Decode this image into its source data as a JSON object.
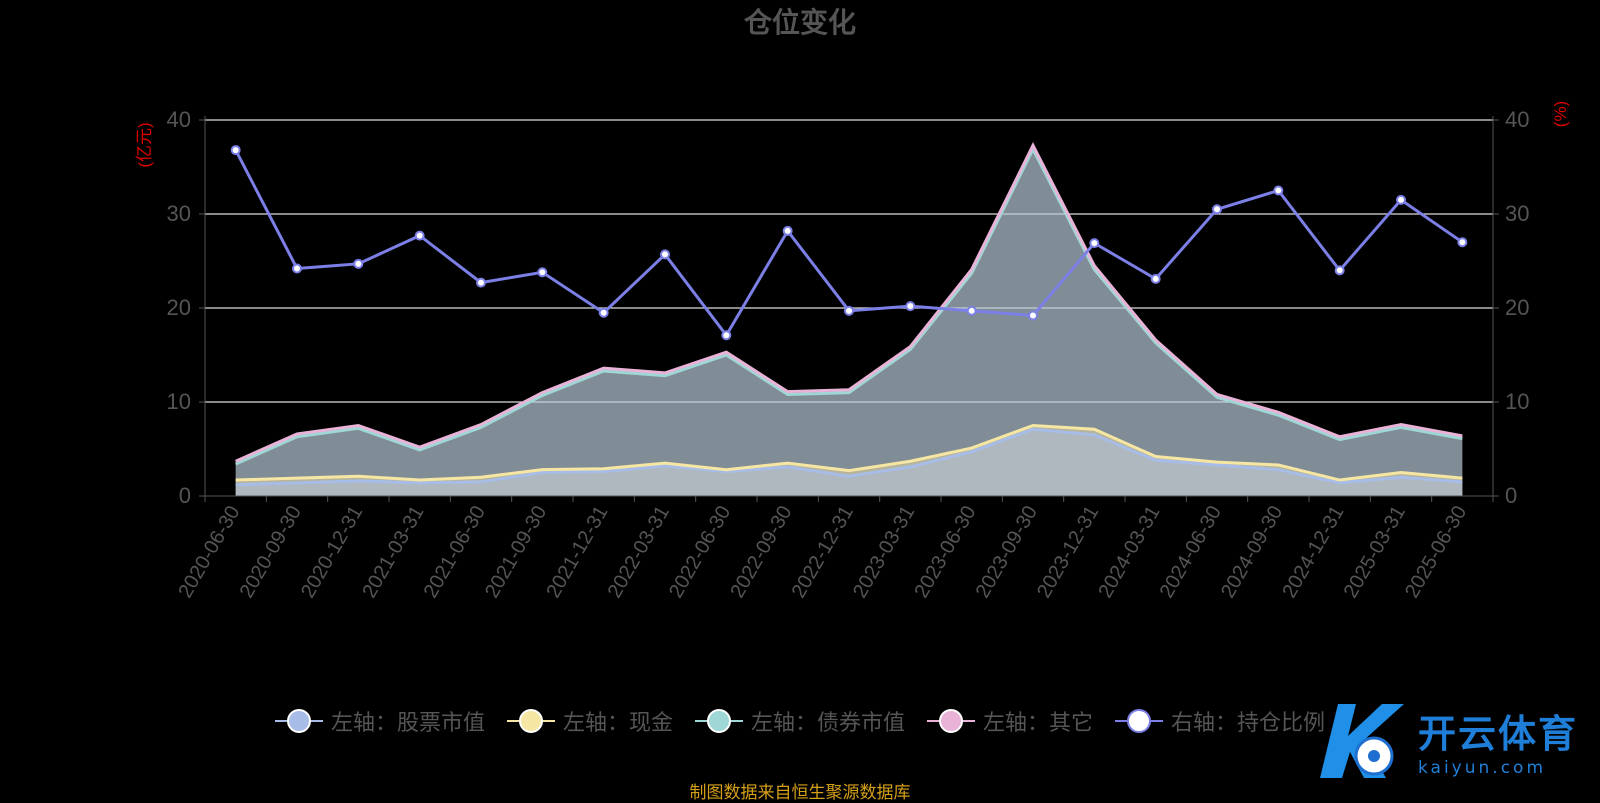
{
  "chart_data": {
    "type": "area",
    "title": "仓位变化",
    "categories": [
      "2020-06-30",
      "2020-09-30",
      "2020-12-31",
      "2021-03-31",
      "2021-06-30",
      "2021-09-30",
      "2021-12-31",
      "2022-03-31",
      "2022-06-30",
      "2022-09-30",
      "2022-12-31",
      "2023-03-31",
      "2023-06-30",
      "2023-09-30",
      "2023-12-31",
      "2024-03-31",
      "2024-06-30",
      "2024-09-30",
      "2024-12-31",
      "2025-03-31",
      "2025-06-30"
    ],
    "left_axis": {
      "unit": "(亿元)",
      "ylim": [
        0,
        40
      ],
      "ticks": [
        "0",
        "10",
        "20",
        "30",
        "40"
      ]
    },
    "right_axis": {
      "unit": "(%)",
      "ylim": [
        0,
        40
      ],
      "ticks": [
        "0",
        "10",
        "20",
        "30",
        "40"
      ]
    },
    "series": [
      {
        "name": "左轴：股票市值",
        "axis": "left",
        "stack": true,
        "color": "#a7bde8",
        "values": [
          1.2,
          1.4,
          1.6,
          1.4,
          1.5,
          2.5,
          2.6,
          3.2,
          2.6,
          3.1,
          2.1,
          3.1,
          4.7,
          7.1,
          6.5,
          3.8,
          3.3,
          2.8,
          1.4,
          2.0,
          1.5
        ]
      },
      {
        "name": "左轴：现金",
        "axis": "left",
        "stack": true,
        "color": "#f6e6a3",
        "values": [
          0.5,
          0.5,
          0.5,
          0.3,
          0.5,
          0.3,
          0.3,
          0.3,
          0.2,
          0.4,
          0.6,
          0.6,
          0.4,
          0.4,
          0.6,
          0.4,
          0.3,
          0.5,
          0.3,
          0.5,
          0.4
        ]
      },
      {
        "name": "左轴：债券市值",
        "axis": "left",
        "stack": true,
        "color": "#9fd7d6",
        "values": [
          1.7,
          4.4,
          5.1,
          3.2,
          5.3,
          7.9,
          10.4,
          9.3,
          12.2,
          7.3,
          8.3,
          11.9,
          18.6,
          29.4,
          17.0,
          12.1,
          6.9,
          5.3,
          4.3,
          4.8,
          4.2
        ]
      },
      {
        "name": "左轴：其它",
        "axis": "left",
        "stack": true,
        "color": "#e9b3d8",
        "values": [
          0.3,
          0.3,
          0.3,
          0.3,
          0.3,
          0.3,
          0.3,
          0.3,
          0.3,
          0.3,
          0.3,
          0.3,
          0.4,
          0.4,
          0.4,
          0.3,
          0.3,
          0.3,
          0.3,
          0.3,
          0.3
        ]
      },
      {
        "name": "右轴：持仓比例",
        "axis": "right",
        "stack": false,
        "color": "#7b7fe6",
        "values": [
          36.8,
          24.2,
          24.7,
          27.7,
          22.7,
          23.8,
          19.5,
          25.7,
          17.1,
          28.2,
          19.7,
          20.2,
          19.7,
          19.2,
          26.9,
          23.1,
          30.5,
          32.5,
          24.0,
          31.5,
          27.0
        ]
      }
    ],
    "grid": true,
    "legend_position": "bottom-center",
    "source": "制图数据来自恒生聚源数据库"
  },
  "legend": [
    {
      "label": "左轴：股票市值",
      "color": "#a7bde8"
    },
    {
      "label": "左轴：现金",
      "color": "#f6e6a3"
    },
    {
      "label": "左轴：债券市值",
      "color": "#9fd7d6"
    },
    {
      "label": "左轴：其它",
      "color": "#e9b3d8"
    },
    {
      "label": "右轴：持仓比例",
      "color": "#7b7fe6"
    }
  ],
  "watermark": {
    "cn": "开云体育",
    "en": "kaiyun.com"
  }
}
